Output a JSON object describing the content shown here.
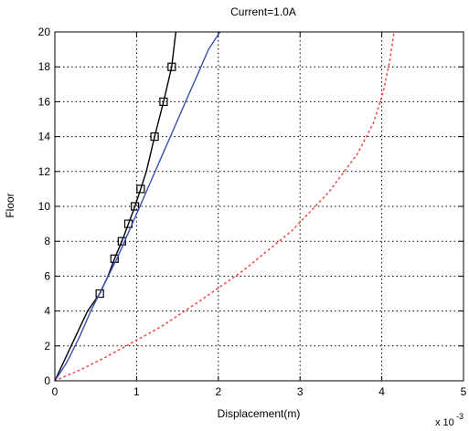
{
  "chart_data": {
    "type": "line",
    "title": "Current=1.0A",
    "xlabel": "Displacement(m)",
    "ylabel": "Floor",
    "x_multiplier_label": "x 10",
    "x_multiplier_exponent": "-3",
    "xlim": [
      0,
      5
    ],
    "ylim": [
      0,
      20
    ],
    "xticks": [
      0,
      1,
      2,
      3,
      4,
      5
    ],
    "xtick_labels": [
      "0",
      "1",
      "2",
      "3",
      "4",
      "5"
    ],
    "yticks": [
      0,
      2,
      4,
      6,
      8,
      10,
      12,
      14,
      16,
      18,
      20
    ],
    "ytick_labels": [
      "0",
      "2",
      "4",
      "6",
      "8",
      "10",
      "12",
      "14",
      "16",
      "18",
      "20"
    ],
    "grid": true,
    "colors": {
      "black": "#000000",
      "blue": "#3a4fb0",
      "red": "#f25050"
    },
    "series": [
      {
        "style": "solid",
        "color": "#000000",
        "marker": "square",
        "x": [
          0,
          0.1,
          0.25,
          0.4,
          0.55,
          0.65,
          0.73,
          0.82,
          0.9,
          0.98,
          1.05,
          1.12,
          1.22,
          1.33,
          1.43,
          1.48
        ],
        "y": [
          0,
          1,
          2.5,
          4,
          5,
          6,
          7,
          8,
          9,
          10,
          11,
          12,
          14,
          16,
          18,
          20
        ],
        "markers_x": [
          0.55,
          0.73,
          0.82,
          0.9,
          0.98,
          1.05,
          1.22,
          1.33,
          1.43
        ],
        "markers_y": [
          5,
          7,
          8,
          9,
          10,
          11,
          14,
          16,
          18
        ]
      },
      {
        "style": "solid",
        "color": "#3a4fb0",
        "x": [
          0,
          0.14,
          0.3,
          0.44,
          0.6,
          0.76,
          0.9,
          1.04,
          1.18,
          1.32,
          1.46,
          1.6,
          1.74,
          1.88,
          2.02
        ],
        "y": [
          0,
          1,
          2.5,
          4,
          5.5,
          7,
          8.5,
          10,
          11.5,
          13,
          14.5,
          16,
          17.5,
          19,
          20
        ]
      },
      {
        "style": "dotted",
        "color": "#f25050",
        "x": [
          0,
          0.3,
          0.6,
          0.95,
          1.3,
          1.75,
          2.3,
          2.9,
          3.35,
          3.7,
          3.9,
          4.02,
          4.1,
          4.15
        ],
        "y": [
          0,
          0.6,
          1.3,
          2.2,
          3.1,
          4.5,
          6.3,
          8.6,
          10.8,
          13,
          14.8,
          16.6,
          18.4,
          20
        ]
      }
    ]
  }
}
